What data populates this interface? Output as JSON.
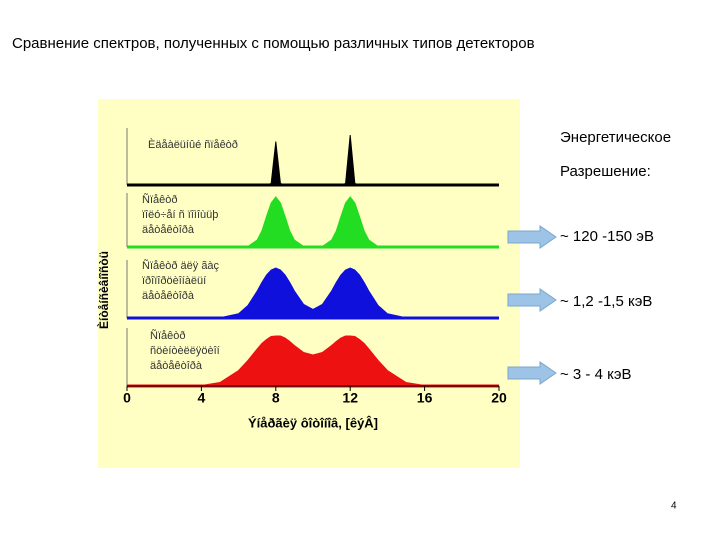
{
  "chart_data": {
    "type": "spectra",
    "title": "Сравнение спектров, полученных с помощью различных типов детекторов",
    "xlabel": "Ýíåðãèÿ ôîòîíîâ, [êýÂ]",
    "ylabel": "Èíòåíñèâíîñòü",
    "xlim": [
      0,
      20
    ],
    "xticks": [
      0,
      4,
      8,
      12,
      16,
      20
    ],
    "x": [
      0,
      1,
      2,
      3,
      4,
      5,
      6,
      6.5,
      7,
      7.25,
      7.5,
      7.75,
      8,
      8.25,
      8.5,
      8.75,
      9,
      9.5,
      10,
      10.5,
      11,
      11.25,
      11.5,
      11.75,
      12,
      12.25,
      12.5,
      12.75,
      13,
      13.5,
      14,
      15,
      16,
      17,
      18,
      19,
      20
    ],
    "ylim": [
      0,
      1
    ],
    "series": [
      {
        "label_lines": [
          "Èäåàëüíûé ñïåêòð"
        ],
        "color": "#000000",
        "values": [
          0,
          0,
          0,
          0,
          0,
          0,
          0,
          0,
          0,
          0,
          0,
          0.03,
          0.87,
          0.03,
          0,
          0,
          0,
          0,
          0,
          0,
          0,
          0,
          0,
          0.03,
          1,
          0.03,
          0,
          0,
          0,
          0,
          0,
          0,
          0,
          0,
          0,
          0,
          0
        ]
      },
      {
        "label_lines": [
          "Ñïåêòð",
          "ïîëó÷åí ñ ïîìîùüþ",
          "äåòåêòîðà"
        ],
        "color": "#22dd22",
        "values": [
          0,
          0,
          0,
          0,
          0,
          0,
          0,
          0.01,
          0.14,
          0.32,
          0.61,
          0.88,
          1,
          0.88,
          0.61,
          0.32,
          0.14,
          0.01,
          0,
          0.01,
          0.14,
          0.32,
          0.61,
          0.88,
          1,
          0.88,
          0.61,
          0.32,
          0.14,
          0.01,
          0,
          0,
          0,
          0,
          0,
          0,
          0
        ]
      },
      {
        "label_lines": [
          "Ñïåêòð äëÿ ãàç",
          "ïðîïîðöèîíàëüí",
          "äåòåêòîðà"
        ],
        "color": "#1010dd",
        "values": [
          0,
          0,
          0,
          0,
          0,
          0.004,
          0.085,
          0.25,
          0.54,
          0.71,
          0.86,
          0.96,
          1,
          0.96,
          0.86,
          0.71,
          0.54,
          0.27,
          0.17,
          0.27,
          0.54,
          0.71,
          0.86,
          0.96,
          1,
          0.96,
          0.86,
          0.71,
          0.54,
          0.25,
          0.085,
          0.004,
          0,
          0,
          0,
          0,
          0
        ]
      },
      {
        "label_lines": [
          "Ñïåêòð",
          "ñöèíòèëëÿöèîí",
          "äåòåêòîðà"
        ],
        "color": "#ee1111",
        "values": [
          0,
          0,
          0,
          0,
          0.009,
          0.07,
          0.31,
          0.51,
          0.74,
          0.85,
          0.93,
          0.99,
          1,
          1,
          0.96,
          0.89,
          0.81,
          0.67,
          0.62,
          0.67,
          0.81,
          0.89,
          0.96,
          1,
          1,
          0.99,
          0.93,
          0.85,
          0.74,
          0.51,
          0.31,
          0.07,
          0.009,
          0,
          0,
          0,
          0
        ]
      }
    ],
    "annotations": [
      "Энергетическое",
      "Разрешение:",
      "~ 120 -150 эВ",
      "~ 1,2 -1,5 кэВ",
      "~ 3 - 4 кэВ"
    ],
    "page_number": "4"
  }
}
